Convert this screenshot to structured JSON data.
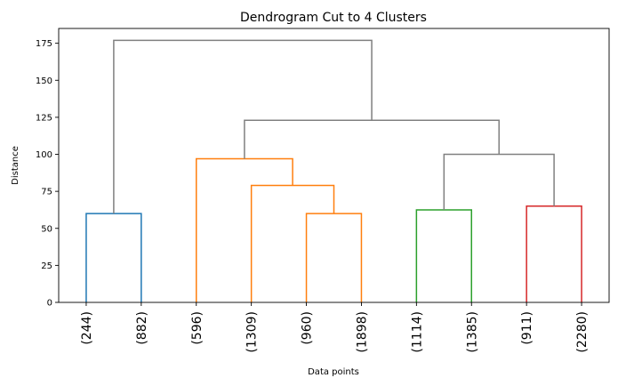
{
  "chart_data": {
    "type": "dendrogram",
    "title": "Dendrogram Cut to 4 Clusters",
    "xlabel": "Data points",
    "ylabel": "Distance",
    "ylim": [
      0,
      185
    ],
    "yticks": [
      0,
      25,
      50,
      75,
      100,
      125,
      150,
      175
    ],
    "grid": false,
    "legend": "none",
    "leaves": [
      "(244)",
      "(882)",
      "(596)",
      "(1309)",
      "(960)",
      "(1898)",
      "(1114)",
      "(1385)",
      "(911)",
      "(2280)"
    ],
    "merges": [
      {
        "left": "leaf:0",
        "right": "leaf:1",
        "height": 60,
        "color": "#1f77b4"
      },
      {
        "left": "leaf:4",
        "right": "leaf:5",
        "height": 60,
        "color": "#ff7f0e"
      },
      {
        "left": "leaf:3",
        "right": "merge:1",
        "height": 79,
        "color": "#ff7f0e"
      },
      {
        "left": "leaf:2",
        "right": "merge:2",
        "height": 97,
        "color": "#ff7f0e"
      },
      {
        "left": "leaf:6",
        "right": "leaf:7",
        "height": 62.5,
        "color": "#2ca02c"
      },
      {
        "left": "leaf:8",
        "right": "leaf:9",
        "height": 65,
        "color": "#d62728"
      },
      {
        "left": "merge:4",
        "right": "merge:5",
        "height": 100,
        "color": "#808080"
      },
      {
        "left": "merge:3",
        "right": "merge:6",
        "height": 123,
        "color": "#808080"
      },
      {
        "left": "merge:0",
        "right": "merge:7",
        "height": 177,
        "color": "#808080"
      }
    ]
  }
}
